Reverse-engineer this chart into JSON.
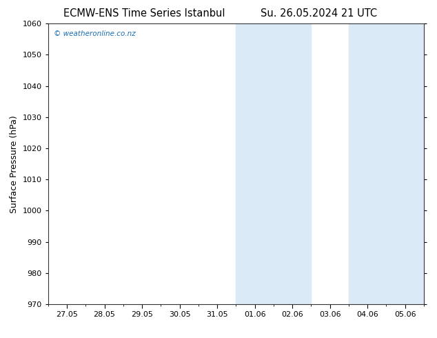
{
  "title_left": "ECMW-ENS Time Series Istanbul",
  "title_right": "Su. 26.05.2024 21 UTC",
  "ylabel": "Surface Pressure (hPa)",
  "ylim": [
    970,
    1060
  ],
  "yticks": [
    970,
    980,
    990,
    1000,
    1010,
    1020,
    1030,
    1040,
    1050,
    1060
  ],
  "xtick_labels": [
    "27.05",
    "28.05",
    "29.05",
    "30.05",
    "31.05",
    "01.06",
    "02.06",
    "03.06",
    "04.06",
    "05.06"
  ],
  "xtick_positions": [
    0,
    1,
    2,
    3,
    4,
    5,
    6,
    7,
    8,
    9
  ],
  "xlim": [
    -0.5,
    9.5
  ],
  "shaded_bands": [
    {
      "x_start": 4.5,
      "x_end": 5.5
    },
    {
      "x_start": 5.5,
      "x_end": 6.5
    },
    {
      "x_start": 7.5,
      "x_end": 8.5
    },
    {
      "x_start": 8.5,
      "x_end": 9.5
    }
  ],
  "watermark_text": "© weatheronline.co.nz",
  "watermark_color": "#1a6eb5",
  "background_color": "#ffffff",
  "plot_bg_color": "#ffffff",
  "shading_color": "#daeaf7",
  "title_fontsize": 10.5,
  "tick_fontsize": 8,
  "ylabel_fontsize": 9
}
